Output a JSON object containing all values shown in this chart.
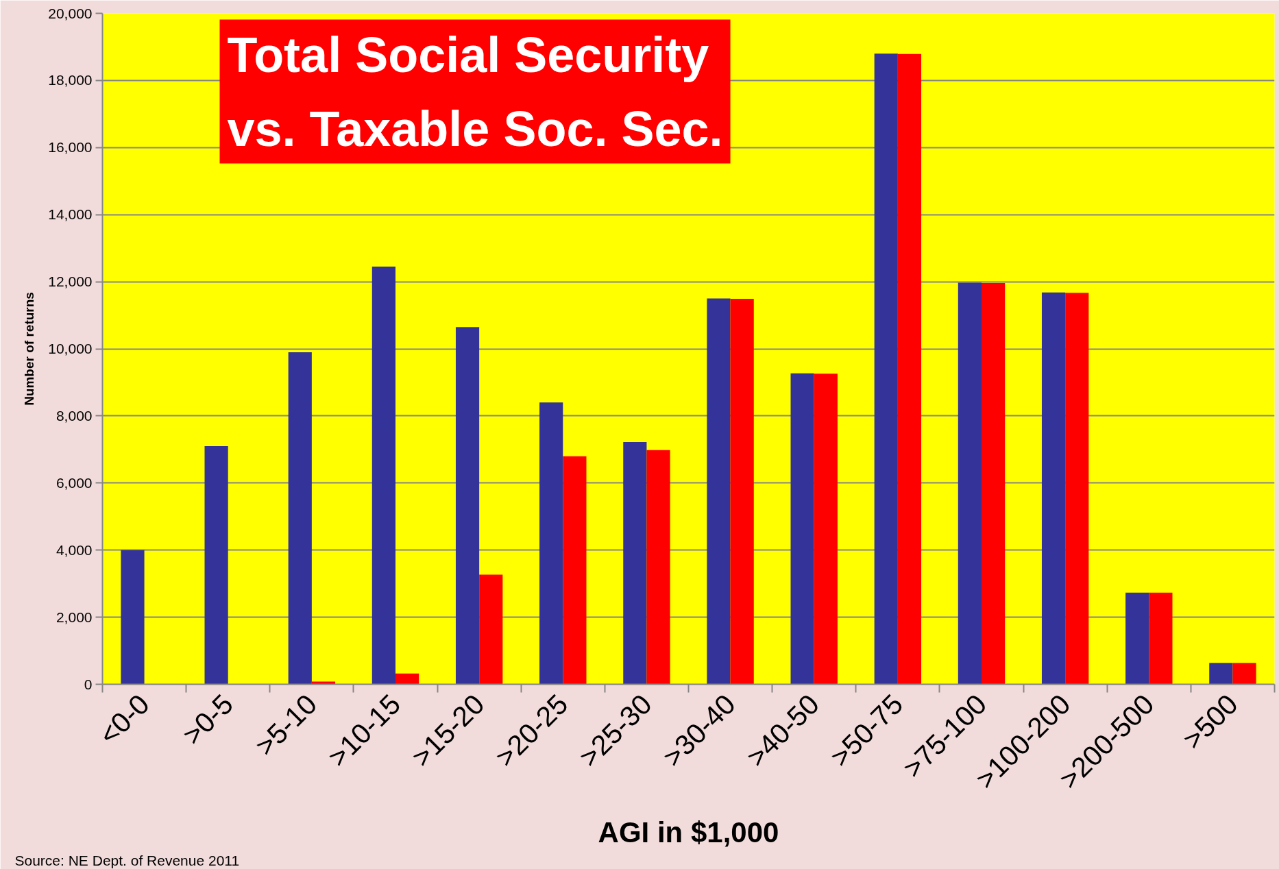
{
  "chart_data": {
    "type": "bar",
    "title": "Total Social Security\nvs. Taxable Soc. Sec.",
    "xlabel": "AGI in $1,000",
    "ylabel": "Number of returns",
    "annotations": [
      "Source:  NE Dept. of Revenue 2011"
    ],
    "categories": [
      "<0-0",
      ">0-5",
      ">5-10",
      ">10-15",
      ">15-20",
      ">20-25",
      ">25-30",
      ">30-40",
      ">40-50",
      ">50-75",
      ">75-100",
      ">100-200",
      ">200-500",
      ">500"
    ],
    "series": [
      {
        "color": "#333399",
        "values": [
          4000,
          7100,
          9900,
          12450,
          10650,
          8400,
          7220,
          11500,
          9270,
          18800,
          11970,
          11680,
          2730,
          640
        ]
      },
      {
        "color": "#ff0000",
        "values": [
          0,
          0,
          80,
          320,
          3270,
          6800,
          6980,
          11490,
          9260,
          18790,
          11960,
          11670,
          2730,
          640
        ]
      }
    ],
    "ylim": [
      0,
      20000
    ],
    "yticks": [
      0,
      {
        "value": 2000,
        "label": "2,000"
      },
      {
        "value": 4000,
        "label": "4,000"
      },
      {
        "value": 6000,
        "label": "6,000"
      },
      {
        "value": 8000,
        "label": "8,000"
      },
      {
        "value": 10000,
        "label": "10,000"
      },
      {
        "value": 12000,
        "label": "12,000"
      },
      {
        "value": 14000,
        "label": "14,000"
      },
      {
        "value": 16000,
        "label": "16,000"
      },
      {
        "value": 18000,
        "label": "18,000"
      },
      {
        "value": 20000,
        "label": "20,000"
      }
    ],
    "grid": "y"
  }
}
